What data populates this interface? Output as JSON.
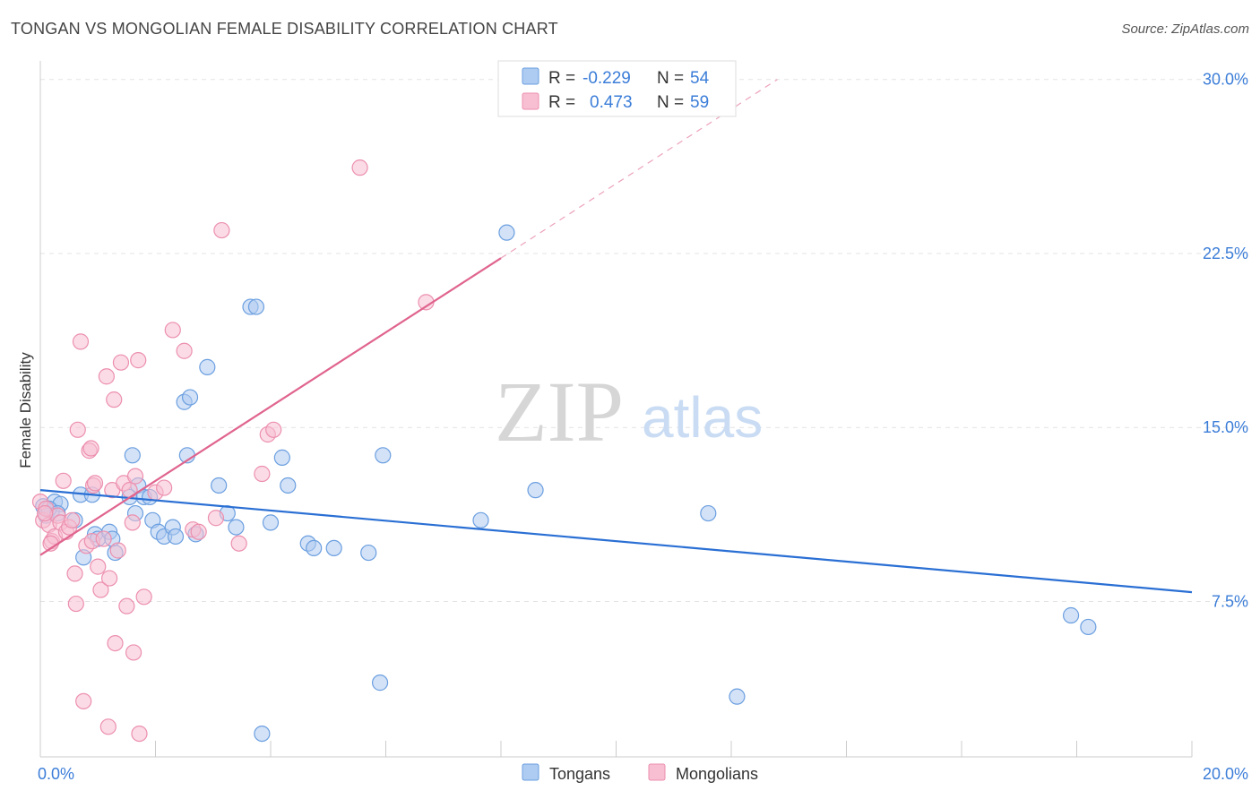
{
  "header": {
    "title": "TONGAN VS MONGOLIAN FEMALE DISABILITY CORRELATION CHART",
    "source": "Source: ZipAtlas.com"
  },
  "watermark": {
    "zip": "ZIP",
    "atlas": "atlas"
  },
  "colors": {
    "tongans_fill": "#aecbf1",
    "tongans_stroke": "#6b9fe0",
    "tongans_line": "#2a6fd4",
    "mongolians_fill": "#f7bfd1",
    "mongolians_stroke": "#ec8fae",
    "mongolians_line": "#e0648e",
    "accent_text": "#3b7dd8",
    "grid": "#e3e3e3"
  },
  "legend": {
    "rows": [
      {
        "r_label": "R =",
        "r_value": "-0.229",
        "n_label": "N =",
        "n_value": "54"
      },
      {
        "r_label": "R =",
        "r_value": "0.473",
        "n_label": "N =",
        "n_value": "59"
      }
    ]
  },
  "bottom_legend": {
    "items": [
      "Tongans",
      "Mongolians"
    ]
  },
  "chart_data": {
    "type": "scatter",
    "title": "TONGAN VS MONGOLIAN FEMALE DISABILITY CORRELATION CHART",
    "xlabel": "",
    "ylabel": "Female Disability",
    "xlim": [
      0,
      20
    ],
    "ylim": [
      0.8,
      30.8
    ],
    "x_tick_labels": [
      {
        "value": 0,
        "label": "0.0%"
      },
      {
        "value": 20,
        "label": "20.0%"
      }
    ],
    "y_tick_labels": [
      {
        "value": 7.5,
        "label": "7.5%"
      },
      {
        "value": 15,
        "label": "15.0%"
      },
      {
        "value": 22.5,
        "label": "22.5%"
      },
      {
        "value": 30,
        "label": "30.0%"
      }
    ],
    "grid": true,
    "legend_position": "top-center",
    "series": [
      {
        "name": "Tongans",
        "points": [
          [
            0.05,
            11.6
          ],
          [
            0.2,
            11.4
          ],
          [
            0.25,
            11.8
          ],
          [
            0.35,
            11.7
          ],
          [
            0.6,
            11.0
          ],
          [
            0.75,
            9.4
          ],
          [
            0.7,
            12.1
          ],
          [
            0.9,
            12.1
          ],
          [
            0.95,
            10.4
          ],
          [
            1.0,
            10.2
          ],
          [
            1.2,
            10.5
          ],
          [
            1.25,
            10.2
          ],
          [
            1.3,
            9.6
          ],
          [
            1.55,
            12.0
          ],
          [
            1.6,
            13.8
          ],
          [
            1.65,
            11.3
          ],
          [
            1.7,
            12.5
          ],
          [
            1.8,
            12.0
          ],
          [
            1.9,
            12.0
          ],
          [
            1.95,
            11.0
          ],
          [
            2.05,
            10.5
          ],
          [
            2.15,
            10.3
          ],
          [
            2.3,
            10.7
          ],
          [
            2.35,
            10.3
          ],
          [
            2.5,
            16.1
          ],
          [
            2.55,
            13.8
          ],
          [
            2.6,
            16.3
          ],
          [
            2.7,
            10.4
          ],
          [
            2.9,
            17.6
          ],
          [
            3.1,
            12.5
          ],
          [
            3.25,
            11.3
          ],
          [
            3.4,
            10.7
          ],
          [
            3.65,
            20.2
          ],
          [
            3.75,
            20.2
          ],
          [
            3.85,
            1.8
          ],
          [
            4.0,
            10.9
          ],
          [
            4.2,
            13.7
          ],
          [
            4.3,
            12.5
          ],
          [
            4.65,
            10.0
          ],
          [
            4.75,
            9.8
          ],
          [
            5.1,
            9.8
          ],
          [
            5.7,
            9.6
          ],
          [
            5.9,
            4.0
          ],
          [
            5.95,
            13.8
          ],
          [
            7.65,
            11.0
          ],
          [
            8.1,
            23.4
          ],
          [
            8.6,
            12.3
          ],
          [
            11.6,
            11.3
          ],
          [
            12.1,
            3.4
          ],
          [
            17.9,
            6.9
          ],
          [
            18.2,
            6.4
          ],
          [
            0.1,
            11.2
          ],
          [
            0.15,
            11.5
          ],
          [
            0.3,
            11.3
          ]
        ]
      },
      {
        "name": "Mongolians",
        "points": [
          [
            0.0,
            11.8
          ],
          [
            0.05,
            11.0
          ],
          [
            0.1,
            11.5
          ],
          [
            0.15,
            10.8
          ],
          [
            0.2,
            10.1
          ],
          [
            0.25,
            10.3
          ],
          [
            0.3,
            11.2
          ],
          [
            0.35,
            10.9
          ],
          [
            0.4,
            12.7
          ],
          [
            0.45,
            10.5
          ],
          [
            0.5,
            10.7
          ],
          [
            0.55,
            11.0
          ],
          [
            0.6,
            8.7
          ],
          [
            0.62,
            7.4
          ],
          [
            0.65,
            14.9
          ],
          [
            0.7,
            18.7
          ],
          [
            0.75,
            3.2
          ],
          [
            0.8,
            9.9
          ],
          [
            0.85,
            14.0
          ],
          [
            0.88,
            14.1
          ],
          [
            0.9,
            10.1
          ],
          [
            0.92,
            12.5
          ],
          [
            0.95,
            12.6
          ],
          [
            1.0,
            9.0
          ],
          [
            1.05,
            8.0
          ],
          [
            1.1,
            10.2
          ],
          [
            1.15,
            17.2
          ],
          [
            1.18,
            2.1
          ],
          [
            1.2,
            8.5
          ],
          [
            1.25,
            12.3
          ],
          [
            1.28,
            16.2
          ],
          [
            1.3,
            5.7
          ],
          [
            1.35,
            9.7
          ],
          [
            1.4,
            17.8
          ],
          [
            1.45,
            12.6
          ],
          [
            1.5,
            7.3
          ],
          [
            1.55,
            12.3
          ],
          [
            1.6,
            10.9
          ],
          [
            1.62,
            5.3
          ],
          [
            1.65,
            12.9
          ],
          [
            1.7,
            17.9
          ],
          [
            1.72,
            1.8
          ],
          [
            1.8,
            7.7
          ],
          [
            2.0,
            12.2
          ],
          [
            2.15,
            12.4
          ],
          [
            2.3,
            19.2
          ],
          [
            2.5,
            18.3
          ],
          [
            2.65,
            10.6
          ],
          [
            2.75,
            10.5
          ],
          [
            3.05,
            11.1
          ],
          [
            3.15,
            23.5
          ],
          [
            3.45,
            10.0
          ],
          [
            3.85,
            13.0
          ],
          [
            3.95,
            14.7
          ],
          [
            4.05,
            14.9
          ],
          [
            5.55,
            26.2
          ],
          [
            6.7,
            20.4
          ],
          [
            0.08,
            11.3
          ],
          [
            0.18,
            10.0
          ]
        ]
      }
    ],
    "trendlines": [
      {
        "series": "Tongans",
        "from": [
          0,
          12.3
        ],
        "to": [
          20,
          7.9
        ],
        "style": "solid"
      },
      {
        "series": "Mongolians",
        "from": [
          0,
          9.5
        ],
        "to": [
          8.0,
          22.3
        ],
        "style": "solid"
      },
      {
        "series": "Mongolians",
        "from": [
          8.0,
          22.3
        ],
        "to": [
          12.8,
          30.0
        ],
        "style": "dashed"
      }
    ],
    "stats": [
      {
        "series": "Tongans",
        "R": -0.229,
        "N": 54
      },
      {
        "series": "Mongolians",
        "R": 0.473,
        "N": 59
      }
    ]
  }
}
